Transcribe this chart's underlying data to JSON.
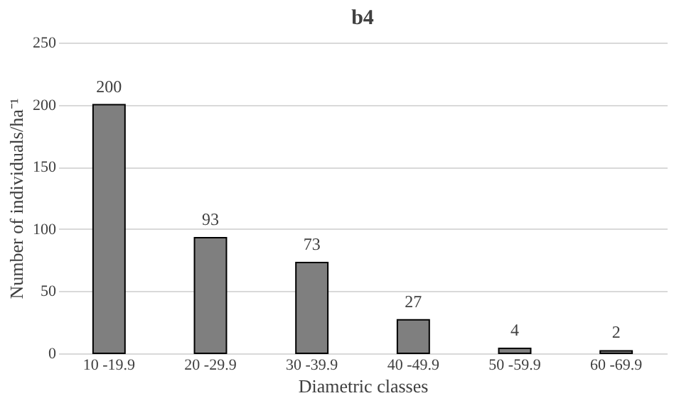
{
  "chart_data": {
    "type": "bar",
    "title": "b4",
    "xlabel": "Diametric classes",
    "ylabel": "Number of individuals/ha⁻¹",
    "categories": [
      "10 -19.9",
      "20 -29.9",
      "30 -39.9",
      "40 -49.9",
      "50 -59.9",
      "60 -69.9"
    ],
    "values": [
      200,
      93,
      73,
      27,
      4,
      2
    ],
    "color": "#7f7f7f",
    "ylim": [
      0,
      250
    ],
    "yticks": [
      0,
      50,
      100,
      150,
      200,
      250
    ],
    "grid": "y",
    "data_labels": true
  }
}
